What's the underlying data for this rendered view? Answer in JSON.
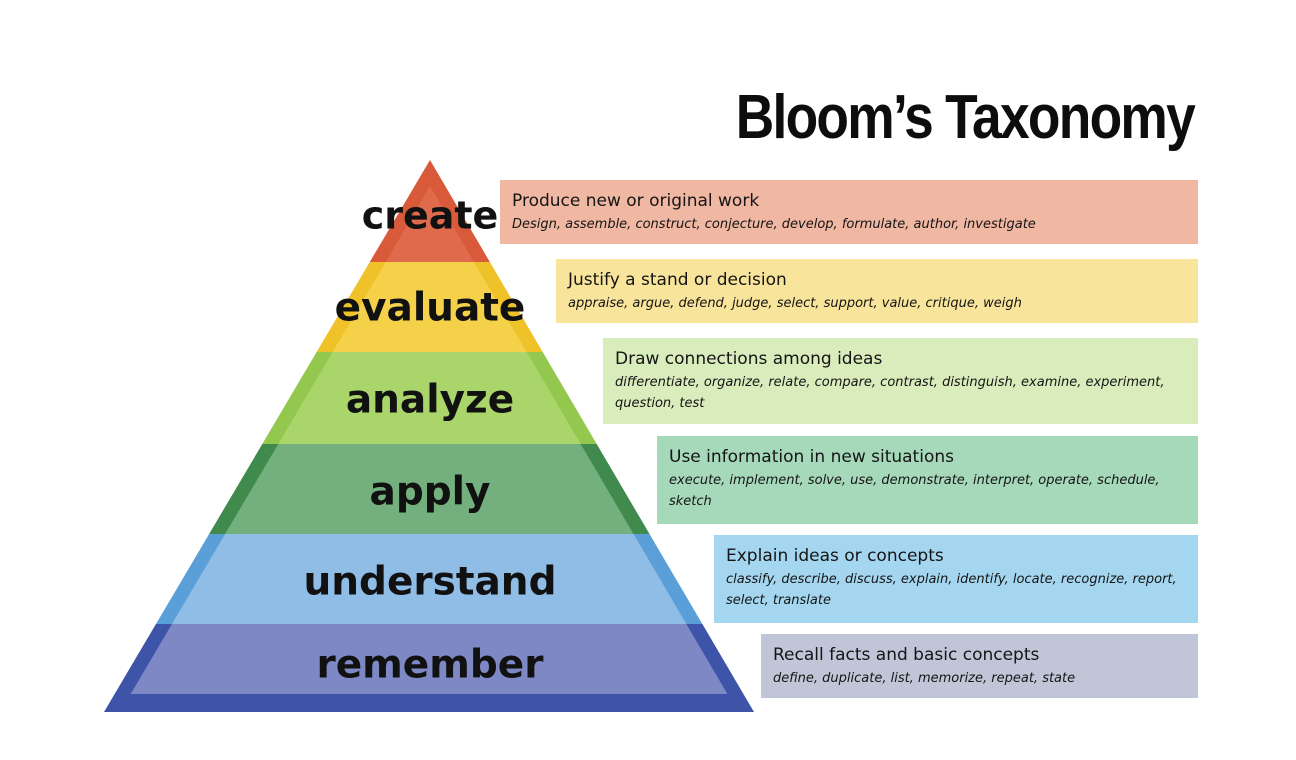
{
  "title": "Bloom’s Taxonomy",
  "levels": [
    {
      "name": "create",
      "color": "#e06b4c",
      "edge": "#d85a3a"
    },
    {
      "name": "evaluate",
      "color": "#f5d14a",
      "edge": "#efc22a"
    },
    {
      "name": "analyze",
      "color": "#a9d56a",
      "edge": "#93c74e"
    },
    {
      "name": "apply",
      "color": "#74b07e",
      "edge": "#3f8a4c"
    },
    {
      "name": "understand",
      "color": "#8fbde6",
      "edge": "#5b9fd8"
    },
    {
      "name": "remember",
      "color": "#7d88c4",
      "edge": "#3e54a8"
    }
  ],
  "descriptions": [
    {
      "heading": "Produce new or original work",
      "verbs": "Design, assemble, construct, conjecture, develop, formulate, author, investigate",
      "color": "#f0b7a2"
    },
    {
      "heading": "Justify a stand or decision",
      "verbs": "appraise, argue, defend, judge, select, support, value, critique, weigh",
      "color": "#f8e49a"
    },
    {
      "heading": "Draw connections among ideas",
      "verbs": "differentiate, organize, relate, compare, contrast, distinguish, examine, experiment, question, test",
      "color": "#d9ecbc"
    },
    {
      "heading": "Use information in new situations",
      "verbs": "execute, implement, solve, use, demonstrate, interpret, operate, schedule, sketch",
      "color": "#a6d9ba"
    },
    {
      "heading": "Explain ideas or concepts",
      "verbs": "classify, describe, discuss, explain, identify, locate, recognize, report, select, translate",
      "color": "#a5d6f0"
    },
    {
      "heading": "Recall facts and basic concepts",
      "verbs": "define, duplicate, list, memorize, repeat, state",
      "color": "#c0c6d8"
    }
  ]
}
